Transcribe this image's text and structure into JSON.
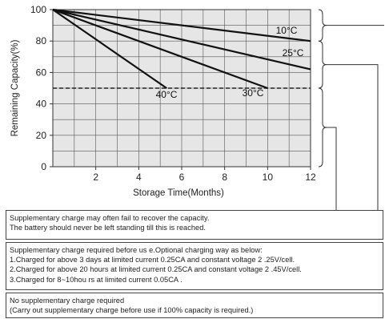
{
  "chart_data": {
    "type": "line",
    "title": "",
    "xlabel": "Storage Time(Months)",
    "ylabel": "Remaining Capacity(%)",
    "xlim": [
      0,
      12
    ],
    "ylim": [
      0,
      100
    ],
    "xticks": [
      2,
      4,
      6,
      8,
      10,
      12
    ],
    "yticks": [
      0,
      20,
      40,
      60,
      80,
      100
    ],
    "grid": true,
    "series": [
      {
        "name": "10°C",
        "x": [
          0,
          12
        ],
        "y": [
          100,
          80
        ]
      },
      {
        "name": "25°C",
        "x": [
          0,
          12
        ],
        "y": [
          100,
          62
        ]
      },
      {
        "name": "30°C",
        "x": [
          0,
          10
        ],
        "y": [
          100,
          50
        ]
      },
      {
        "name": "40°C",
        "x": [
          0,
          5.3
        ],
        "y": [
          100,
          50
        ]
      }
    ],
    "reference_line": {
      "y": 50,
      "style": "dashed"
    }
  },
  "notes": {
    "a": {
      "lines": [
        "Supplementary charge may often  fail to recover  the capacity.",
        "The battery should never be  left  standing till this is reached."
      ]
    },
    "b": {
      "lines": [
        "Supplementary charge required before us e.Optional charging way as below:",
        "1.Charged for above 3 days at  limited  current  0.25CA and constant voltage 2 .25V/cell.",
        "2.Charged for above 20 hours at limited  current  0.25CA and constant voltage 2 .45V/cell.",
        "3.Charged for 8~10hou rs at limited current 0.05CA ."
      ]
    },
    "c": {
      "lines": [
        "No supplementary charge required",
        "(Carry out supplementary charge before  use if 100% capacity is required.)"
      ]
    }
  }
}
